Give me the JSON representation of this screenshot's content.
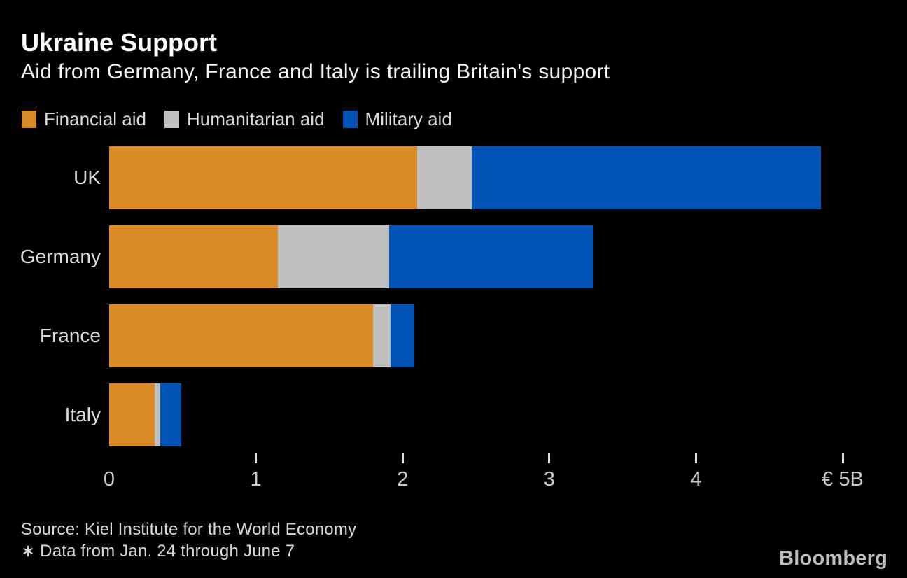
{
  "header": {
    "title": "Ukraine Support",
    "subtitle": "Aid from Germany, France and Italy is trailing Britain's support"
  },
  "legend": [
    {
      "label": "Financial aid",
      "color": "#da8b27"
    },
    {
      "label": "Humanitarian aid",
      "color": "#bfbfbf"
    },
    {
      "label": "Military aid",
      "color": "#0154b5"
    }
  ],
  "chart_data": {
    "type": "bar",
    "orientation": "horizontal",
    "stacked": true,
    "title": "Ukraine Support",
    "subtitle": "Aid from Germany, France and Italy is trailing Britain's support",
    "unit": "€B",
    "categories": [
      "UK",
      "Germany",
      "France",
      "Italy"
    ],
    "series": [
      {
        "name": "Financial aid",
        "color": "#da8b27",
        "values": [
          2.1,
          1.15,
          1.8,
          0.31
        ]
      },
      {
        "name": "Humanitarian aid",
        "color": "#bfbfbf",
        "values": [
          0.37,
          0.76,
          0.12,
          0.04
        ]
      },
      {
        "name": "Military aid",
        "color": "#0154b5",
        "values": [
          2.38,
          1.39,
          0.16,
          0.14
        ]
      }
    ],
    "totals": [
      4.85,
      3.3,
      2.08,
      0.49
    ],
    "xlim": [
      0,
      5
    ],
    "x_ticks": [
      0,
      1,
      2,
      3,
      4,
      5
    ],
    "x_tick_labels": [
      "0",
      "1",
      "2",
      "3",
      "4",
      "€ 5B"
    ],
    "grid": false,
    "legend_position": "top"
  },
  "footer": {
    "source": "Source: Kiel Institute for the World Economy",
    "note": "∗ Data from Jan. 24 through June 7",
    "logo": "Bloomberg"
  }
}
